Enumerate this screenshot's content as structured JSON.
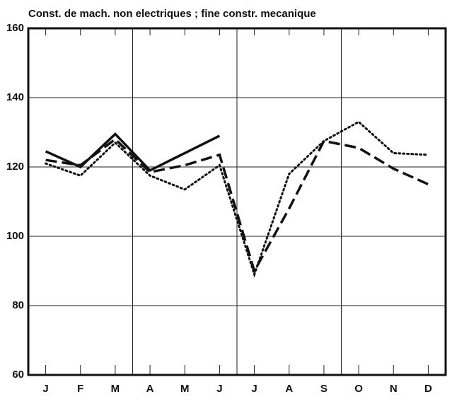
{
  "chart_data": {
    "type": "line",
    "title": "Const. de mach. non electriques ; fine constr. mecanique",
    "categories": [
      "J",
      "F",
      "M",
      "A",
      "M",
      "J",
      "J",
      "A",
      "S",
      "O",
      "N",
      "D"
    ],
    "series": [
      {
        "color": "#111111",
        "style": "solid",
        "values": [
          124.5,
          120,
          129.5,
          119,
          124,
          129,
          null,
          null,
          null,
          null,
          null,
          null
        ]
      },
      {
        "color": "#111111",
        "style": "dashed",
        "values": [
          122,
          120.5,
          128,
          118.5,
          120.5,
          123.5,
          90,
          108,
          127.5,
          125.5,
          119.5,
          115
        ]
      },
      {
        "color": "#111111",
        "style": "dotted",
        "values": [
          121,
          117.5,
          127,
          117.5,
          113.5,
          120.5,
          89,
          118,
          127.5,
          133,
          124,
          123.5
        ]
      }
    ],
    "ylim": [
      60,
      160
    ],
    "yticks": [
      60,
      80,
      100,
      120,
      140,
      160
    ],
    "grid": true
  }
}
